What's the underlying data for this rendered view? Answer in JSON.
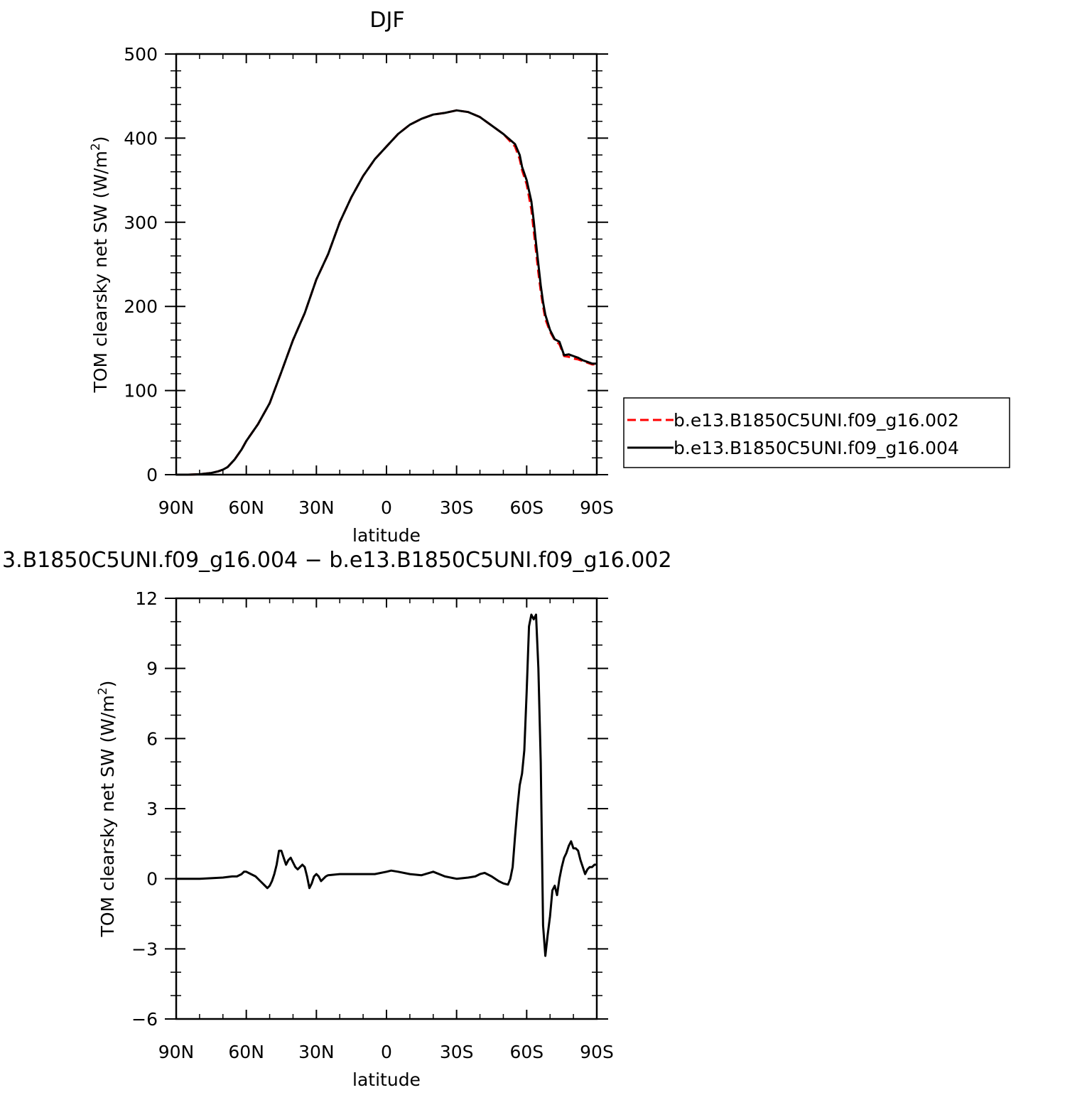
{
  "chart_data": [
    {
      "type": "line",
      "title": "DJF",
      "xlabel": "latitude",
      "ylabel": "TOM clearsky net SW (W/m",
      "ylabel_sup": "2",
      "ylabel_close": ")",
      "xlim": [
        90,
        -90
      ],
      "ylim": [
        0,
        500
      ],
      "x_ticks": [
        90,
        60,
        30,
        0,
        -30,
        -60,
        -90
      ],
      "x_tick_labels": [
        "90N",
        "60N",
        "30N",
        "0",
        "30S",
        "60S",
        "90S"
      ],
      "y_ticks": [
        0,
        100,
        200,
        300,
        400,
        500
      ],
      "y_tick_labels": [
        "0",
        "100",
        "200",
        "300",
        "400",
        "500"
      ],
      "grid": false,
      "legend_position": "right",
      "series": [
        {
          "name": "b.e13.B1850C5UNI.f09_g16.002",
          "color": "#ff0000",
          "dash": "dashed",
          "x": [
            90,
            85,
            80,
            75,
            72,
            70,
            68,
            65,
            62,
            60,
            55,
            50,
            45,
            40,
            35,
            30,
            25,
            20,
            15,
            10,
            5,
            0,
            -5,
            -10,
            -15,
            -20,
            -25,
            -30,
            -35,
            -40,
            -45,
            -50,
            -55,
            -57,
            -58,
            -60,
            -62,
            -63,
            -64,
            -65,
            -66,
            -67,
            -68,
            -70,
            -72,
            -74,
            -76,
            -78,
            -80,
            -82,
            -84,
            -86,
            -88,
            -90
          ],
          "y": [
            0,
            0,
            0.5,
            2,
            4,
            6,
            9,
            18,
            30,
            40,
            60,
            85,
            122,
            160,
            192,
            232,
            262,
            300,
            330,
            355,
            375,
            390,
            405,
            416,
            423,
            428,
            430,
            433,
            431,
            425,
            415,
            405,
            390,
            375,
            362,
            345,
            315,
            290,
            265,
            240,
            218,
            200,
            185,
            170,
            160,
            155,
            141,
            140,
            138,
            137,
            135,
            133,
            131,
            131
          ]
        },
        {
          "name": "b.e13.B1850C5UNI.f09_g16.004",
          "color": "#000000",
          "dash": "solid",
          "x": [
            90,
            85,
            80,
            75,
            72,
            70,
            68,
            65,
            62,
            60,
            55,
            50,
            45,
            40,
            35,
            30,
            25,
            20,
            15,
            10,
            5,
            0,
            -5,
            -10,
            -15,
            -20,
            -25,
            -30,
            -35,
            -40,
            -45,
            -50,
            -55,
            -57,
            -58,
            -60,
            -62,
            -63,
            -64,
            -65,
            -66,
            -67,
            -68,
            -70,
            -72,
            -74,
            -76,
            -78,
            -80,
            -82,
            -84,
            -86,
            -88,
            -90
          ],
          "y": [
            0,
            0,
            0.5,
            2,
            4,
            6,
            9,
            18,
            30,
            40,
            60,
            85,
            122,
            160,
            192,
            232,
            262,
            300,
            330,
            355,
            375,
            390,
            405,
            416,
            423,
            428,
            430,
            433,
            431,
            425,
            415,
            405,
            393,
            380,
            366,
            350,
            325,
            302,
            275,
            250,
            225,
            205,
            190,
            172,
            161,
            158,
            142,
            143,
            141,
            139,
            136,
            134,
            132,
            132
          ]
        }
      ]
    },
    {
      "type": "line",
      "title": "3.B1850C5UNI.f09_g16.004 − b.e13.B1850C5UNI.f09_g16.002",
      "xlabel": "latitude",
      "ylabel": "TOM clearsky net SW (W/m",
      "ylabel_sup": "2",
      "ylabel_close": ")",
      "xlim": [
        90,
        -90
      ],
      "ylim": [
        -6,
        12
      ],
      "x_ticks": [
        90,
        60,
        30,
        0,
        -30,
        -60,
        -90
      ],
      "x_tick_labels": [
        "90N",
        "60N",
        "30N",
        "0",
        "30S",
        "60S",
        "90S"
      ],
      "y_ticks": [
        -6,
        -3,
        0,
        3,
        6,
        9,
        12
      ],
      "y_tick_labels": [
        "−6",
        "−3",
        "0",
        "3",
        "6",
        "9",
        "12"
      ],
      "grid": false,
      "series": [
        {
          "color": "#000000",
          "dash": "solid",
          "x": [
            90,
            80,
            70,
            66,
            64,
            62,
            61,
            60,
            58,
            56,
            54,
            52,
            51,
            50,
            49,
            48,
            47,
            46,
            45,
            44,
            43,
            42,
            41,
            40,
            39,
            38,
            37,
            36,
            35,
            34,
            33,
            32,
            31,
            30,
            29,
            28,
            27,
            26,
            25,
            20,
            15,
            10,
            5,
            0,
            -2,
            -5,
            -10,
            -15,
            -20,
            -25,
            -30,
            -35,
            -38,
            -40,
            -42,
            -45,
            -48,
            -50,
            -52,
            -53,
            -54,
            -55,
            -56,
            -57,
            -58,
            -59,
            -60,
            -61,
            -62,
            -63,
            -64,
            -65,
            -66,
            -67,
            -68,
            -69,
            -70,
            -71,
            -72,
            -73,
            -74,
            -75,
            -76,
            -77,
            -78,
            -79,
            -80,
            -81,
            -82,
            -83,
            -84,
            -85,
            -86,
            -87,
            -88,
            -89,
            -90
          ],
          "y": [
            0,
            0,
            0.05,
            0.1,
            0.1,
            0.2,
            0.3,
            0.3,
            0.2,
            0.1,
            -0.1,
            -0.3,
            -0.4,
            -0.3,
            -0.1,
            0.2,
            0.6,
            1.2,
            1.2,
            0.9,
            0.6,
            0.8,
            0.9,
            0.7,
            0.5,
            0.4,
            0.5,
            0.6,
            0.5,
            0.1,
            -0.4,
            -0.2,
            0.1,
            0.2,
            0.1,
            -0.1,
            0.0,
            0.1,
            0.15,
            0.2,
            0.2,
            0.2,
            0.2,
            0.3,
            0.35,
            0.3,
            0.2,
            0.15,
            0.3,
            0.1,
            0.0,
            0.05,
            0.1,
            0.2,
            0.25,
            0.1,
            -0.1,
            -0.2,
            -0.25,
            0.0,
            0.5,
            1.8,
            3.0,
            4.0,
            4.5,
            5.5,
            8.0,
            10.8,
            11.3,
            11.1,
            11.3,
            9.0,
            5.0,
            -2.0,
            -3.3,
            -2.4,
            -1.6,
            -0.5,
            -0.3,
            -0.7,
            0.0,
            0.5,
            0.9,
            1.1,
            1.4,
            1.6,
            1.3,
            1.3,
            1.2,
            0.8,
            0.5,
            0.2,
            0.4,
            0.5,
            0.5,
            0.6,
            0.6
          ]
        }
      ]
    }
  ]
}
